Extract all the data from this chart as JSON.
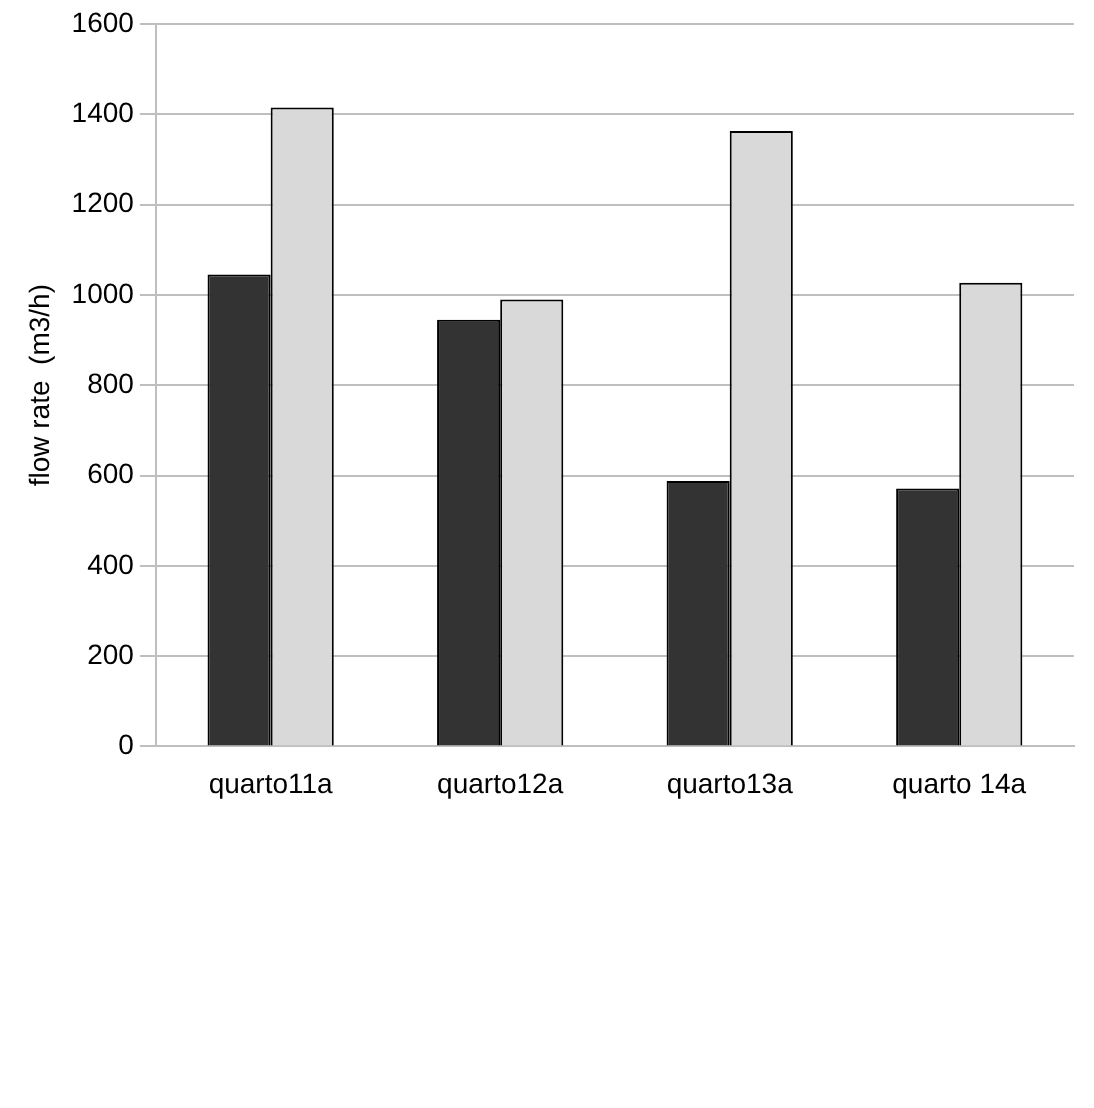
{
  "chart_data": {
    "type": "bar",
    "ylabel": "flow rate  (m3/h)",
    "categories": [
      "quarto11a",
      "quarto12a",
      "quarto13a",
      "quarto 14a"
    ],
    "series": [
      {
        "color": "#333333",
        "values": [
          1045,
          945,
          588,
          571
        ]
      },
      {
        "color": "#d9d9d9",
        "values": [
          1415,
          990,
          1363,
          1027
        ]
      }
    ],
    "ylim": [
      0,
      1600
    ],
    "yticks": [
      0,
      200,
      400,
      600,
      800,
      1000,
      1200,
      1400,
      1600
    ],
    "grid": "y"
  }
}
